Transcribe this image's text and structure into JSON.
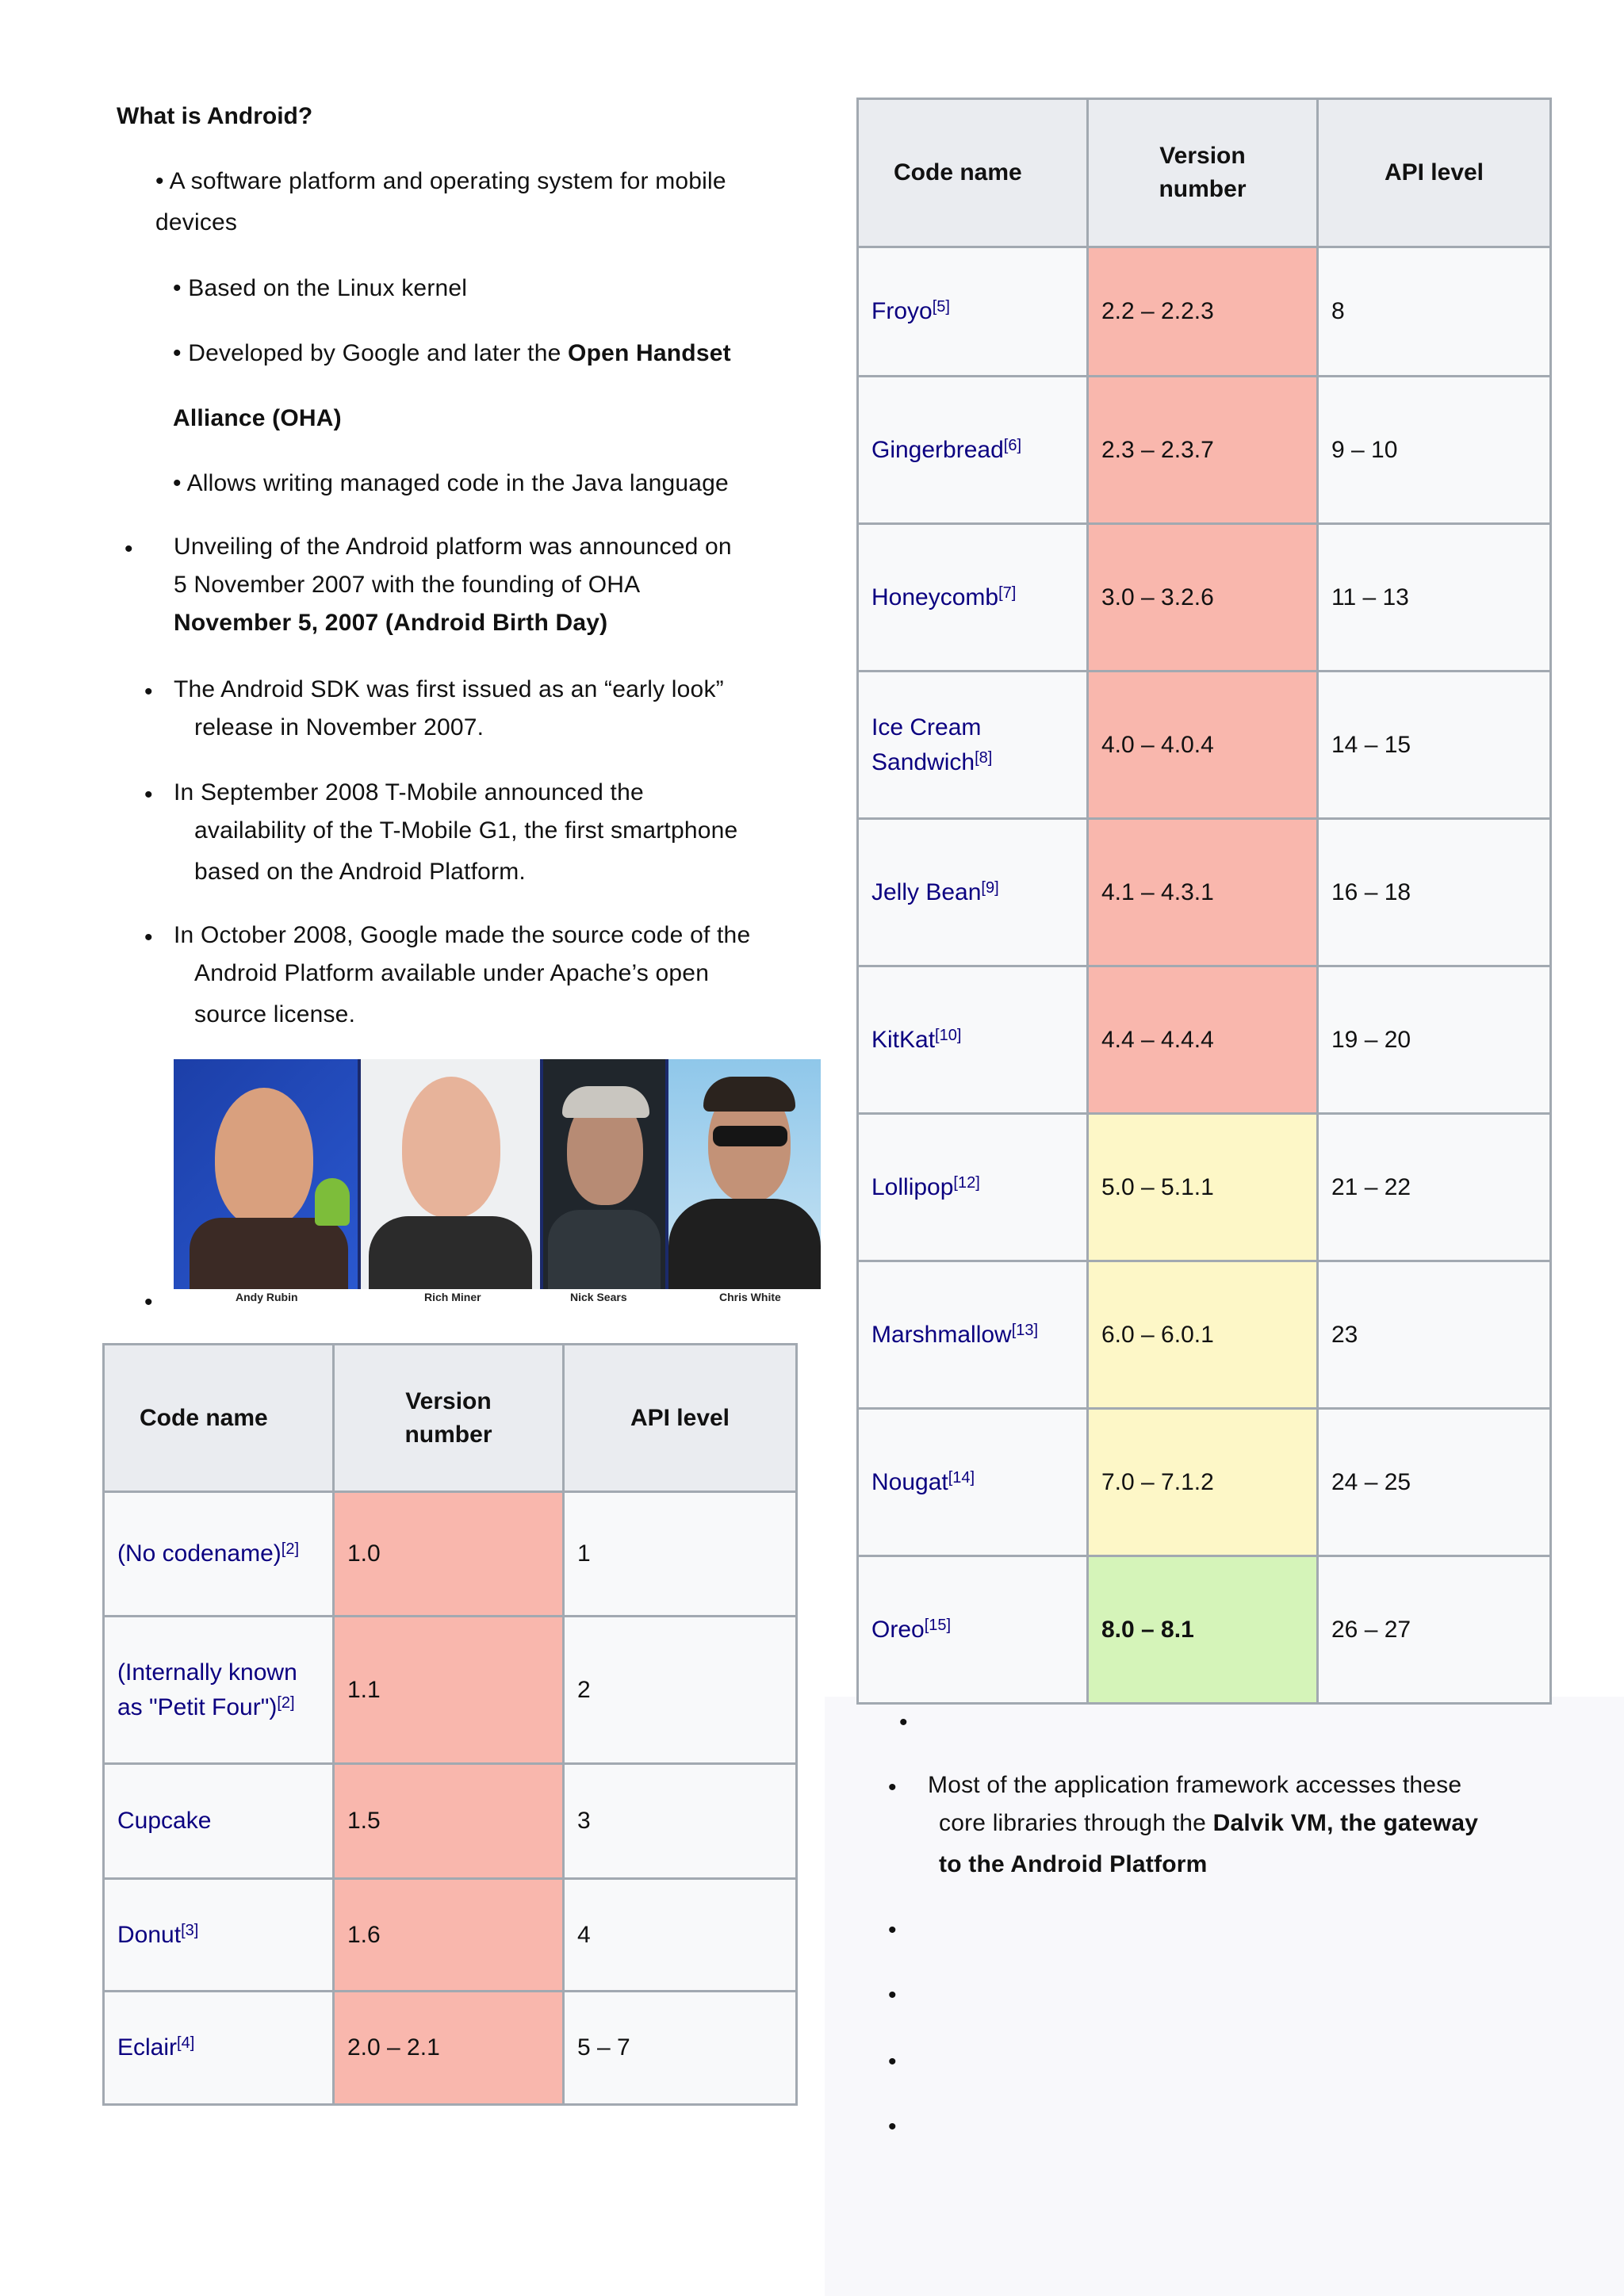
{
  "left": {
    "heading": "What is Android?",
    "bullets": {
      "b1_line1": "• A software platform and operating system for mobile",
      "b1_line2": "devices",
      "b2": "• Based on the Linux kernel",
      "b3_line1_pre": "• Developed by Google and later the ",
      "b3_line1_bold": "Open Handset",
      "b3_line2_bold": "Alliance  (OHA)",
      "b4": "• Allows writing managed code in the Java language",
      "b5_line1": "Unveiling of the Android platform was announced on",
      "b5_line2": "5 November  2007 with the founding of OHA",
      "b5_line3_bold": "November 5, 2007 (Android Birth Day)",
      "b6_line1": "The Android SDK was first issued as an “early look”",
      "b6_line2": "release in November  2007.",
      "b7_line1": "In September  2008 T-Mobile announced the",
      "b7_line2": "availability of the T-Mobile G1, the first smartphone",
      "b7_line3": "based on the Android Platform.",
      "b8_line1": "In October  2008, Google made the source code of the",
      "b8_line2": "Android Platform available under Apache’s open",
      "b8_line3": "source license."
    },
    "photo_captions": [
      "Andy Rubin",
      "Rich Miner",
      "Nick Sears",
      "Chris White"
    ],
    "table": {
      "headers": [
        "Code name",
        "Version number",
        "API level"
      ],
      "rows": [
        {
          "name": "(No codename)",
          "ref": "[2]",
          "version": "1.0",
          "api": "1"
        },
        {
          "name": "(Internally known as \"Petit Four\")",
          "ref": "[2]",
          "version": "1.1",
          "api": "2"
        },
        {
          "name": "Cupcake",
          "ref": "",
          "version": "1.5",
          "api": "3"
        },
        {
          "name": "Donut",
          "ref": "[3]",
          "version": "1.6",
          "api": "4"
        },
        {
          "name": "Eclair",
          "ref": "[4]",
          "version": "2.0 – 2.1",
          "api": "5 – 7"
        }
      ]
    }
  },
  "right": {
    "table": {
      "headers": [
        "Code name",
        "Version number",
        "API level"
      ],
      "rows": [
        {
          "name": "Froyo",
          "ref": "[5]",
          "version": "2.2 – 2.2.3",
          "api": "8"
        },
        {
          "name": "Gingerbread",
          "ref": "[6]",
          "version": "2.3 – 2.3.7",
          "api": "9 – 10"
        },
        {
          "name": "Honeycomb",
          "ref": "[7]",
          "version": "3.0 – 3.2.6",
          "api": "11 – 13"
        },
        {
          "name": "Ice Cream Sandwich",
          "ref": "[8]",
          "version": "4.0 – 4.0.4",
          "api": "14 – 15"
        },
        {
          "name": "Jelly Bean",
          "ref": "[9]",
          "version": "4.1 – 4.3.1",
          "api": "16 – 18"
        },
        {
          "name": "KitKat",
          "ref": "[10]",
          "version": "4.4 – 4.4.4",
          "api": "19 – 20"
        },
        {
          "name": "Lollipop",
          "ref": "[12]",
          "version": "5.0 – 5.1.1",
          "api": "21 – 22"
        },
        {
          "name": "Marshmallow",
          "ref": "[13]",
          "version": "6.0 – 6.0.1",
          "api": "23"
        },
        {
          "name": "Nougat",
          "ref": "[14]",
          "version": "7.0 – 7.1.2",
          "api": "24 – 25"
        },
        {
          "name": "Oreo",
          "ref": "[15]",
          "version": "8.0 – 8.1",
          "api": "26 – 27"
        }
      ]
    },
    "note_line1": "Most of the application framework accesses these",
    "note_line2_pre": "core libraries through the ",
    "note_line2_bold": "Dalvik  VM, the gateway",
    "note_line3_bold": "to the Android Platform"
  },
  "colors": {
    "unsupported": "#f9b7ad",
    "older": "#fdf7c7",
    "latest": "#d5f4b9",
    "link": "#0b0080"
  }
}
